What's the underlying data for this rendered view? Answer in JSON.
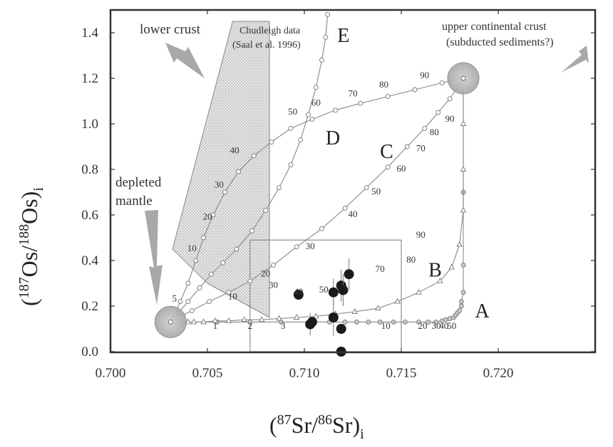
{
  "chart_data": {
    "type": "scatter",
    "xlim": [
      0.7,
      0.72
    ],
    "ylim": [
      0.0,
      1.5
    ],
    "x_ticks": [
      "0.700",
      "0.705",
      "0.710",
      "0.715",
      "0.720"
    ],
    "y_ticks": [
      "0.0",
      "0.2",
      "0.4",
      "0.6",
      "0.8",
      "1.0",
      "1.2",
      "1.4"
    ],
    "xlabel": {
      "open": "(",
      "sup": "87",
      "mid1": "Sr/",
      "sup2": "86",
      "mid2": "Sr)",
      "sub": "i"
    },
    "ylabel": {
      "open": "(",
      "sup": "187",
      "mid1": "Os/",
      "sup2": "188",
      "mid2": "Os)",
      "sub": "i"
    },
    "annotations": {
      "lower_crust": "lower crust",
      "chudleigh_1": "Chudleigh data",
      "chudleigh_2": "(Saal et al. 1996)",
      "upper_crust_1": "upper continental crust",
      "upper_crust_2": "(subducted sediments?)",
      "depleted_1": "depleted",
      "depleted_2": "mantle"
    },
    "end_members": {
      "depleted_mantle": {
        "x": 0.7031,
        "y": 0.13
      },
      "upper_crust": {
        "x": 0.7182,
        "y": 1.2
      }
    },
    "chudleigh_field": [
      [
        0.7063,
        1.45
      ],
      [
        0.7082,
        1.45
      ],
      [
        0.7082,
        0.15
      ],
      [
        0.705,
        0.3
      ],
      [
        0.7032,
        0.45
      ]
    ],
    "inset_box": {
      "x": [
        0.7072,
        0.715
      ],
      "y": [
        0.0,
        0.49
      ]
    },
    "curves": [
      {
        "letter": "A",
        "letter_pos": [
          0.7188,
          0.15
        ],
        "marker": "circle",
        "points": [
          [
            0.7031,
            0.13
          ],
          [
            0.7055,
            0.13
          ],
          [
            0.7072,
            0.13
          ],
          [
            0.7088,
            0.13
          ],
          [
            0.7103,
            0.13
          ],
          [
            0.7113,
            0.13
          ],
          [
            0.7121,
            0.13
          ],
          [
            0.7127,
            0.13
          ],
          [
            0.7133,
            0.13
          ],
          [
            0.7139,
            0.13
          ],
          [
            0.7146,
            0.13
          ],
          [
            0.7152,
            0.13
          ],
          [
            0.7159,
            0.13
          ],
          [
            0.7164,
            0.13
          ],
          [
            0.7168,
            0.13
          ],
          [
            0.7171,
            0.135
          ],
          [
            0.7173,
            0.14
          ],
          [
            0.7175,
            0.145
          ],
          [
            0.7177,
            0.15
          ],
          [
            0.7178,
            0.16
          ],
          [
            0.7179,
            0.17
          ],
          [
            0.718,
            0.18
          ],
          [
            0.7181,
            0.2
          ],
          [
            0.7181,
            0.22
          ],
          [
            0.7182,
            0.26
          ],
          [
            0.7182,
            0.38
          ],
          [
            0.7182,
            0.7
          ],
          [
            0.7182,
            1.2
          ]
        ],
        "labels": [
          {
            "text": "1",
            "at": [
              0.7054,
              0.1
            ]
          },
          {
            "text": "2",
            "at": [
              0.7072,
              0.1
            ]
          },
          {
            "text": "3",
            "at": [
              0.7089,
              0.1
            ]
          },
          {
            "text": "10",
            "at": [
              0.7142,
              0.1
            ]
          },
          {
            "text": "20",
            "at": [
              0.7161,
              0.1
            ]
          },
          {
            "text": "30",
            "at": [
              0.7168,
              0.1
            ]
          },
          {
            "text": "40",
            "at": [
              0.7172,
              0.1
            ]
          },
          {
            "text": "50",
            "at": [
              0.7176,
              0.1
            ]
          }
        ]
      },
      {
        "letter": "B",
        "letter_pos": [
          0.7164,
          0.33
        ],
        "marker": "triangle",
        "points": [
          [
            0.7031,
            0.13
          ],
          [
            0.7033,
            0.13
          ],
          [
            0.7035,
            0.13
          ],
          [
            0.7037,
            0.13
          ],
          [
            0.704,
            0.13
          ],
          [
            0.7043,
            0.13
          ],
          [
            0.7048,
            0.13
          ],
          [
            0.7054,
            0.135
          ],
          [
            0.7061,
            0.135
          ],
          [
            0.7069,
            0.14
          ],
          [
            0.7078,
            0.14
          ],
          [
            0.7087,
            0.145
          ],
          [
            0.7096,
            0.15
          ],
          [
            0.7106,
            0.155
          ],
          [
            0.7116,
            0.165
          ],
          [
            0.7126,
            0.175
          ],
          [
            0.7138,
            0.19
          ],
          [
            0.7148,
            0.22
          ],
          [
            0.7159,
            0.26
          ],
          [
            0.717,
            0.31
          ],
          [
            0.7176,
            0.37
          ],
          [
            0.718,
            0.47
          ],
          [
            0.7182,
            0.62
          ],
          [
            0.7182,
            0.8
          ],
          [
            0.7182,
            1.0
          ],
          [
            0.7182,
            1.2
          ]
        ],
        "labels": [
          {
            "text": "30",
            "at": [
              0.7084,
              0.28
            ]
          },
          {
            "text": "40",
            "at": [
              0.7097,
              0.25
            ]
          },
          {
            "text": "50",
            "at": [
              0.711,
              0.26
            ]
          },
          {
            "text": "70",
            "at": [
              0.7139,
              0.35
            ]
          },
          {
            "text": "80",
            "at": [
              0.7155,
              0.39
            ]
          },
          {
            "text": "90",
            "at": [
              0.716,
              0.5
            ]
          }
        ]
      },
      {
        "letter": "C",
        "letter_pos": [
          0.7139,
          0.85
        ],
        "marker": "circle",
        "points": [
          [
            0.7031,
            0.13
          ],
          [
            0.7035,
            0.15
          ],
          [
            0.7042,
            0.18
          ],
          [
            0.7051,
            0.22
          ],
          [
            0.7061,
            0.26
          ],
          [
            0.7072,
            0.31
          ],
          [
            0.7084,
            0.38
          ],
          [
            0.7096,
            0.46
          ],
          [
            0.7109,
            0.54
          ],
          [
            0.7121,
            0.63
          ],
          [
            0.7132,
            0.72
          ],
          [
            0.7143,
            0.81
          ],
          [
            0.7153,
            0.9
          ],
          [
            0.7162,
            0.98
          ],
          [
            0.7169,
            1.05
          ],
          [
            0.7175,
            1.11
          ],
          [
            0.7179,
            1.16
          ],
          [
            0.7182,
            1.2
          ]
        ],
        "labels": [
          {
            "text": "10",
            "at": [
              0.7063,
              0.23
            ]
          },
          {
            "text": "20",
            "at": [
              0.708,
              0.33
            ]
          },
          {
            "text": "30",
            "at": [
              0.7103,
              0.45
            ]
          },
          {
            "text": "40",
            "at": [
              0.7125,
              0.59
            ]
          },
          {
            "text": "50",
            "at": [
              0.7137,
              0.69
            ]
          },
          {
            "text": "60",
            "at": [
              0.715,
              0.79
            ]
          },
          {
            "text": "70",
            "at": [
              0.716,
              0.88
            ]
          },
          {
            "text": "80",
            "at": [
              0.7167,
              0.95
            ]
          },
          {
            "text": "90",
            "at": [
              0.7175,
              1.01
            ]
          }
        ]
      },
      {
        "letter": "D",
        "letter_pos": [
          0.7111,
          0.91
        ],
        "marker": "circle",
        "points": [
          [
            0.7031,
            0.13
          ],
          [
            0.7033,
            0.16
          ],
          [
            0.7036,
            0.22
          ],
          [
            0.704,
            0.3
          ],
          [
            0.7044,
            0.4
          ],
          [
            0.7048,
            0.5
          ],
          [
            0.7053,
            0.6
          ],
          [
            0.7059,
            0.7
          ],
          [
            0.7066,
            0.79
          ],
          [
            0.7074,
            0.86
          ],
          [
            0.7083,
            0.92
          ],
          [
            0.7093,
            0.98
          ],
          [
            0.7104,
            1.02
          ],
          [
            0.7116,
            1.06
          ],
          [
            0.7129,
            1.09
          ],
          [
            0.7143,
            1.12
          ],
          [
            0.7157,
            1.15
          ],
          [
            0.7171,
            1.18
          ],
          [
            0.7182,
            1.2
          ]
        ],
        "labels": [
          {
            "text": "10",
            "at": [
              0.7042,
              0.44
            ]
          },
          {
            "text": "20",
            "at": [
              0.705,
              0.58
            ]
          },
          {
            "text": "30",
            "at": [
              0.7056,
              0.72
            ]
          },
          {
            "text": "40",
            "at": [
              0.7064,
              0.87
            ]
          },
          {
            "text": "50",
            "at": [
              0.7094,
              1.04
            ]
          },
          {
            "text": "60",
            "at": [
              0.7106,
              1.08
            ]
          },
          {
            "text": "70",
            "at": [
              0.7125,
              1.12
            ]
          },
          {
            "text": "80",
            "at": [
              0.7141,
              1.16
            ]
          },
          {
            "text": "90",
            "at": [
              0.7162,
              1.2
            ]
          }
        ]
      },
      {
        "letter": "E",
        "letter_pos": [
          0.7117,
          1.36
        ],
        "marker": "circle",
        "points": [
          [
            0.7031,
            0.13
          ],
          [
            0.7035,
            0.17
          ],
          [
            0.704,
            0.22
          ],
          [
            0.7046,
            0.28
          ],
          [
            0.7052,
            0.34
          ],
          [
            0.7058,
            0.39
          ],
          [
            0.7065,
            0.45
          ],
          [
            0.7073,
            0.53
          ],
          [
            0.708,
            0.62
          ],
          [
            0.7087,
            0.72
          ],
          [
            0.7093,
            0.82
          ],
          [
            0.7098,
            0.93
          ],
          [
            0.7102,
            1.04
          ],
          [
            0.7106,
            1.16
          ],
          [
            0.7109,
            1.28
          ],
          [
            0.7111,
            1.38
          ],
          [
            0.7112,
            1.48
          ]
        ],
        "labels": [
          {
            "text": "5",
            "at": [
              0.7033,
              0.22
            ]
          }
        ]
      }
    ],
    "samples": [
      {
        "x": 0.7097,
        "y": 0.25,
        "err": 0.0
      },
      {
        "x": 0.7103,
        "y": 0.12,
        "err": 0.05
      },
      {
        "x": 0.7104,
        "y": 0.13,
        "err": 0.0
      },
      {
        "x": 0.7115,
        "y": 0.26,
        "err": 0.06
      },
      {
        "x": 0.7115,
        "y": 0.15,
        "err": 0.08
      },
      {
        "x": 0.7119,
        "y": 0.29,
        "err": 0.07
      },
      {
        "x": 0.712,
        "y": 0.27,
        "err": 0.07
      },
      {
        "x": 0.7123,
        "y": 0.34,
        "err": 0.07
      },
      {
        "x": 0.7119,
        "y": 0.1,
        "err": 0.0
      },
      {
        "x": 0.7119,
        "y": 0.0,
        "err": 0.0
      }
    ]
  }
}
